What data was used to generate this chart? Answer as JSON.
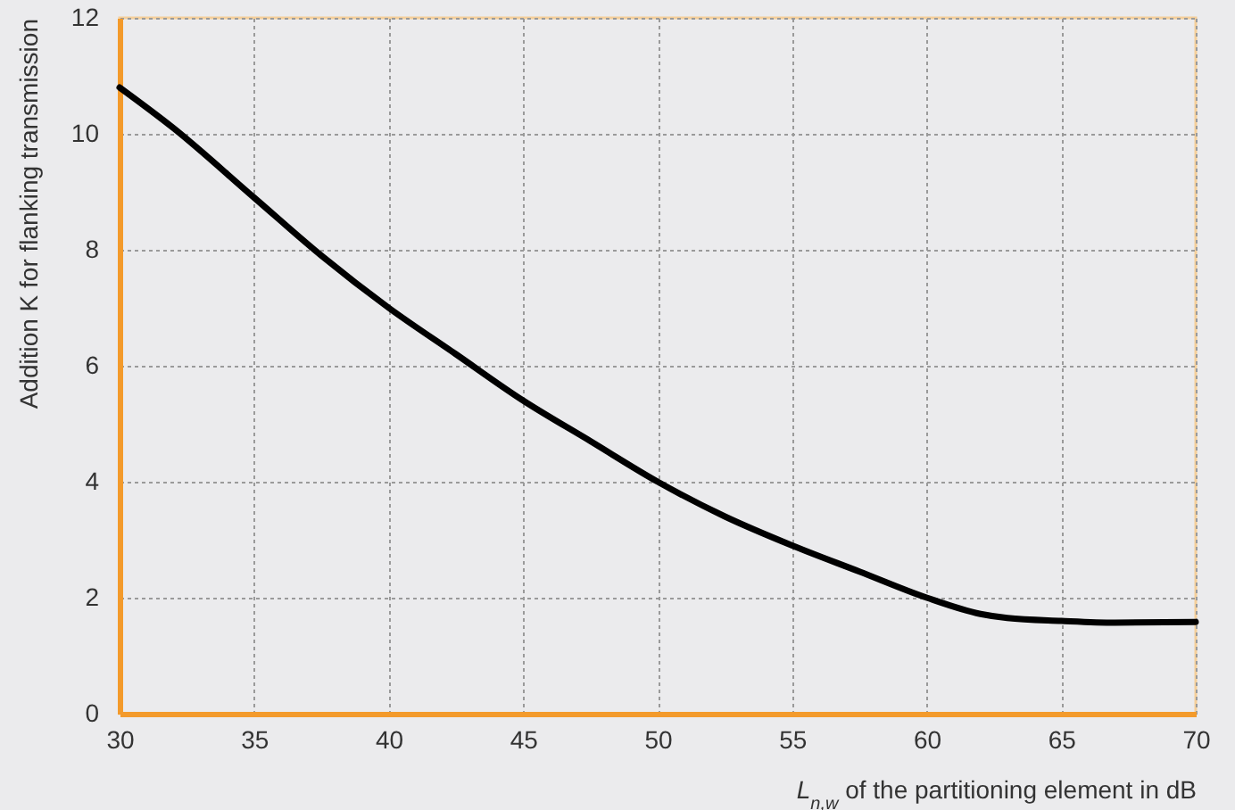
{
  "chart_data": {
    "type": "line",
    "xlabel": "L$_{n,w}$ of the partitioning element in dB",
    "ylabel": "Addition K for flanking transmission",
    "x": [
      30,
      32,
      35,
      37.5,
      40,
      42.5,
      45,
      47.5,
      50,
      52.5,
      55,
      57.5,
      60,
      62,
      63,
      65,
      67,
      70
    ],
    "series": [
      {
        "color": "#000000",
        "values": [
          10.8,
          10.1,
          8.9,
          7.9,
          7.0,
          6.2,
          5.4,
          4.7,
          4.0,
          3.4,
          2.9,
          2.45,
          2.0,
          1.72,
          1.65,
          1.6,
          1.57,
          1.58
        ]
      }
    ],
    "xlim": [
      30,
      70
    ],
    "xticks": [
      30,
      35,
      40,
      45,
      50,
      55,
      60,
      65,
      70
    ],
    "ylim": [
      0,
      12
    ],
    "yticks": [
      0,
      2,
      4,
      6,
      8,
      10,
      12
    ],
    "grid": true,
    "marker": "none",
    "line_style": "solid"
  }
}
